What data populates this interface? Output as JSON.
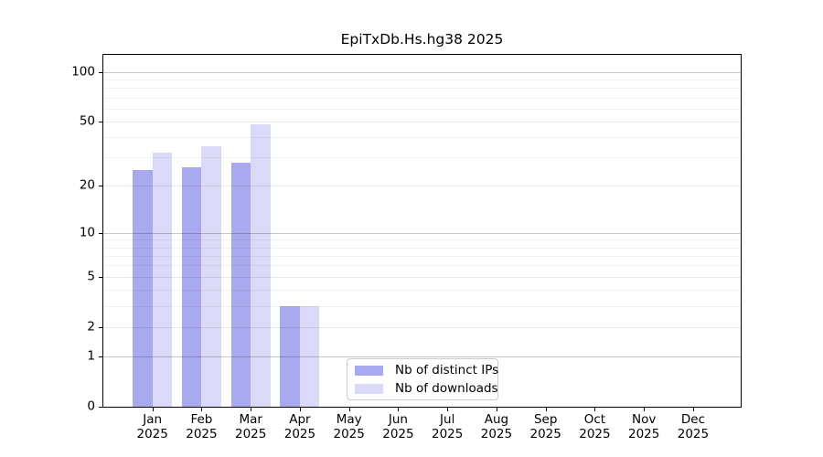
{
  "title": "EpiTxDb.Hs.hg38 2025",
  "chart_data": {
    "type": "bar",
    "title": "EpiTxDb.Hs.hg38 2025",
    "y_scale": "log1p",
    "categories": [
      "Jan",
      "Feb",
      "Mar",
      "Apr",
      "May",
      "Jun",
      "Jul",
      "Aug",
      "Sep",
      "Oct",
      "Nov",
      "Dec"
    ],
    "year_label": "2025",
    "series": [
      {
        "name": "Nb of distinct IPs",
        "color": "#a9a9f0",
        "values": [
          25,
          26,
          28,
          3,
          null,
          null,
          null,
          null,
          null,
          null,
          null,
          null
        ]
      },
      {
        "name": "Nb of downloads",
        "color": "#dadaf8",
        "values": [
          32,
          35,
          48,
          3,
          null,
          null,
          null,
          null,
          null,
          null,
          null,
          null
        ]
      }
    ],
    "y_ticks": [
      0,
      1,
      2,
      5,
      10,
      20,
      50,
      100
    ],
    "y_major_gridlines": [
      1,
      10,
      100
    ],
    "y_labeled_gridlines": [
      2,
      5,
      20,
      50
    ],
    "y_minor_gridlines": [
      3,
      4,
      6,
      7,
      8,
      9,
      30,
      40,
      60,
      70,
      80,
      90
    ],
    "ylim": [
      0,
      127
    ],
    "grid": true,
    "legend_position": "bottom-center",
    "axis_color": "#000000",
    "background_color": "#ffffff"
  }
}
